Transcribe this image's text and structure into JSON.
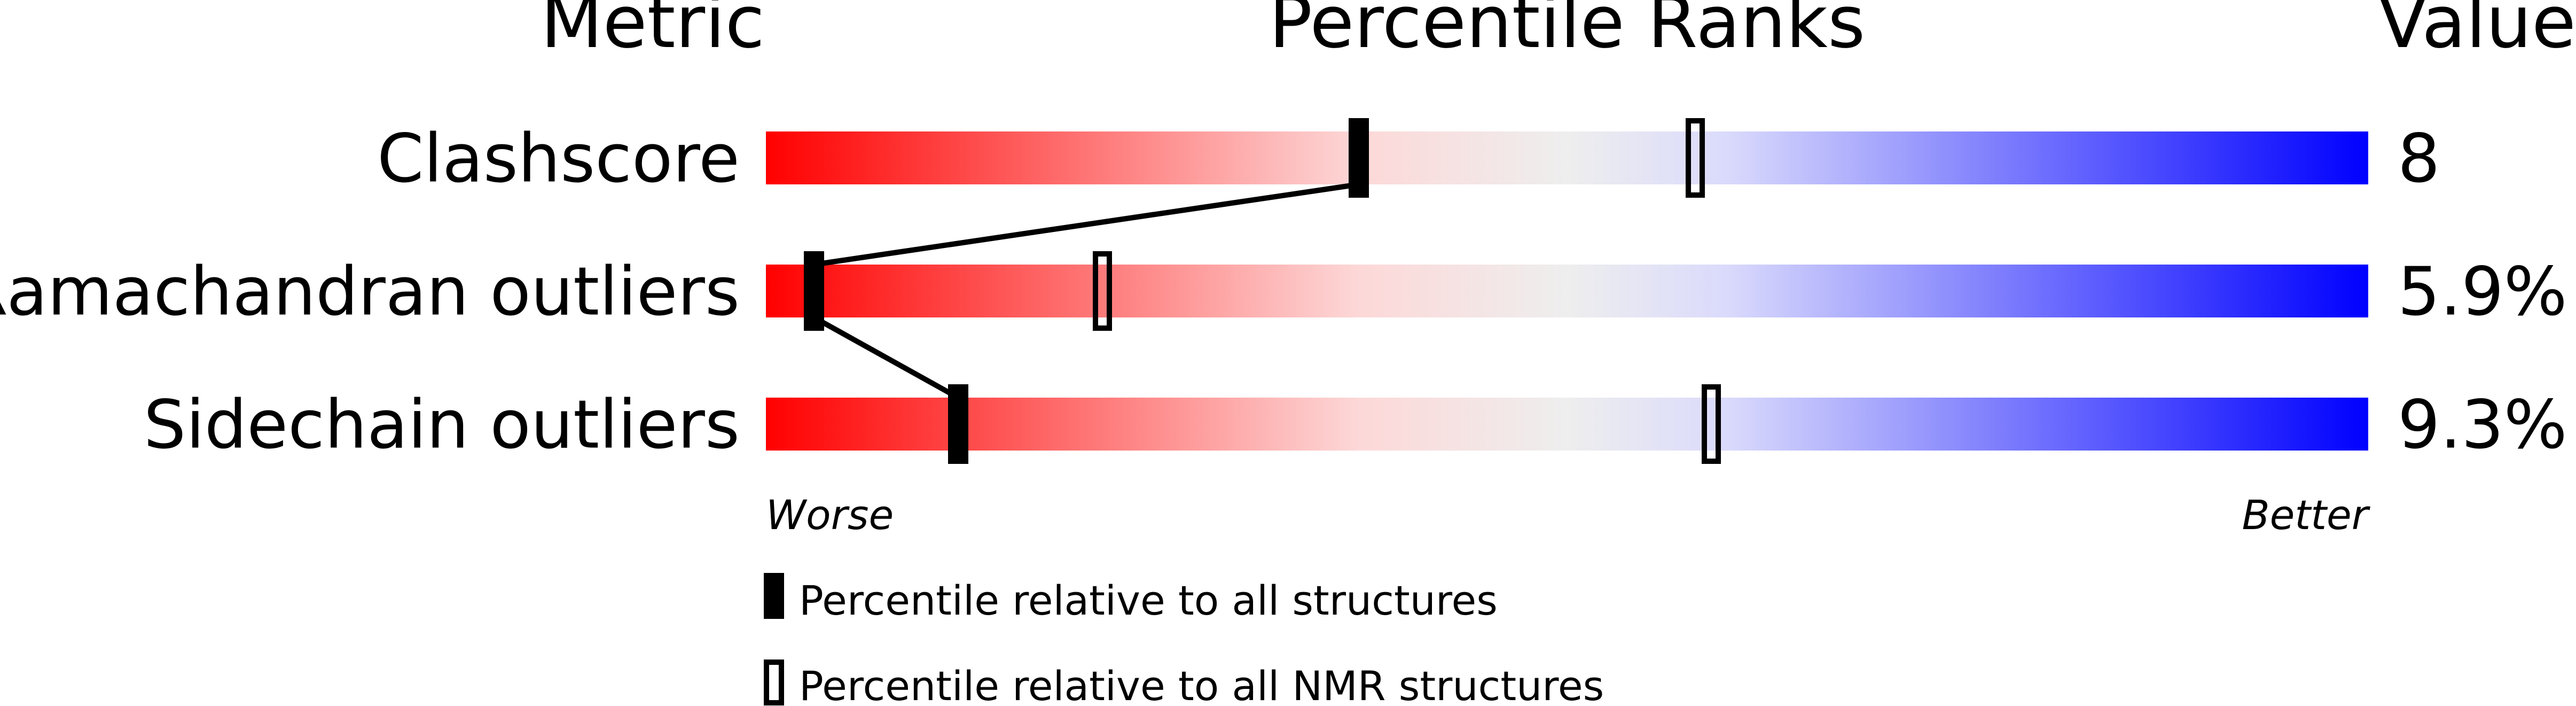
{
  "chart_data": {
    "type": "percentile-bar",
    "headers": {
      "metric": "Metric",
      "percentile": "Percentile Ranks",
      "value": "Value"
    },
    "xlim": [
      0,
      100
    ],
    "axis_labels": {
      "left": "Worse",
      "right": "Better"
    },
    "rows": [
      {
        "metric": "Clashscore",
        "value": "8",
        "percentile_all": 37,
        "percentile_nmr": 58
      },
      {
        "metric": "Ramachandran outliers",
        "value": "5.9%",
        "percentile_all": 3,
        "percentile_nmr": 21
      },
      {
        "metric": "Sidechain outliers",
        "value": "9.3%",
        "percentile_all": 12,
        "percentile_nmr": 59
      }
    ],
    "legend": {
      "all": "Percentile relative to all structures",
      "nmr": "Percentile relative to all NMR structures"
    },
    "gradient_colors": [
      "#ff0000",
      "#fdd8d8",
      "#eeeeee",
      "#dadafc",
      "#0000ff"
    ]
  }
}
